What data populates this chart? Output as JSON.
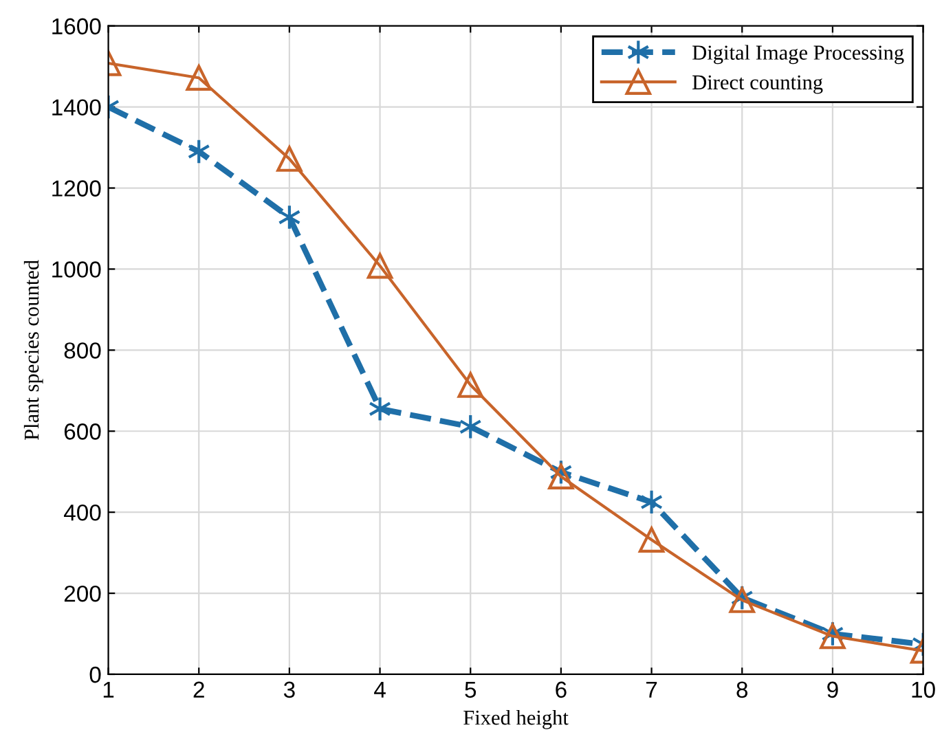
{
  "chart_data": {
    "type": "line",
    "xlabel": "Fixed height",
    "ylabel": "Plant species counted",
    "x": [
      1,
      2,
      3,
      4,
      5,
      6,
      7,
      8,
      9,
      10
    ],
    "series": [
      {
        "name": "Digital Image Processing",
        "color": "#1f6fa8",
        "values": [
          1400,
          1290,
          1128,
          655,
          611,
          499,
          425,
          189,
          100,
          74
        ],
        "marker": "cross",
        "line_style": "dashed"
      },
      {
        "name": "Direct counting",
        "color": "#c8642a",
        "values": [
          1508,
          1472,
          1272,
          1008,
          714,
          488,
          332,
          183,
          94,
          58
        ],
        "marker": "triangle",
        "line_style": "solid"
      }
    ],
    "xlim": [
      1,
      10
    ],
    "ylim": [
      0,
      1600
    ],
    "xticks": [
      1,
      2,
      3,
      4,
      5,
      6,
      7,
      8,
      9,
      10
    ],
    "yticks": [
      0,
      200,
      400,
      600,
      800,
      1000,
      1200,
      1400,
      1600
    ],
    "grid": true,
    "legend": "top right"
  }
}
